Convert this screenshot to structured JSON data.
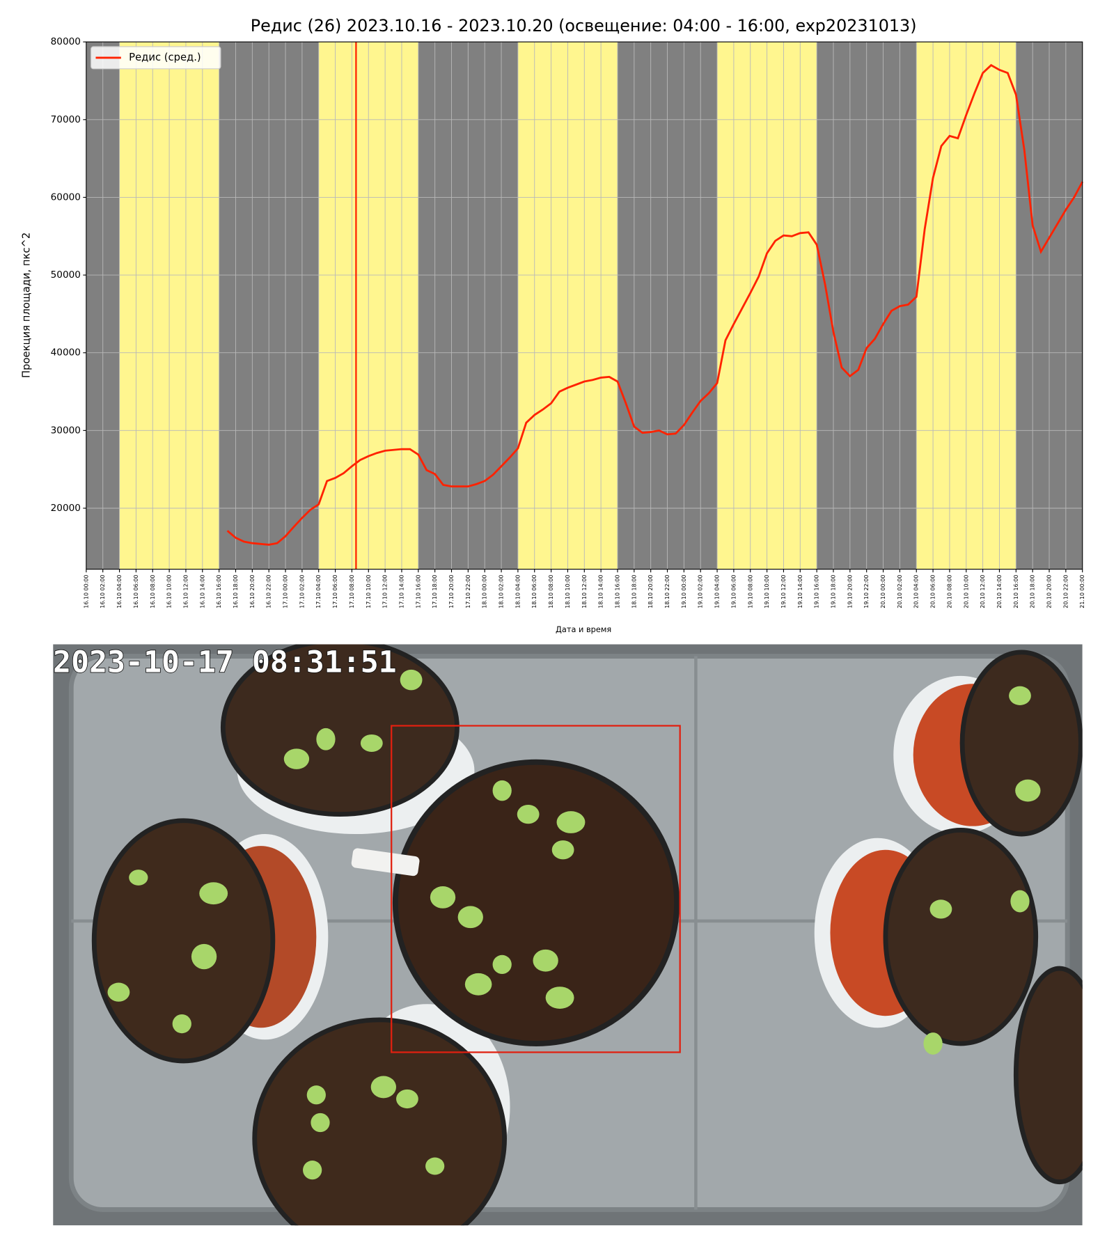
{
  "chart_data": {
    "type": "line",
    "title": "Редис (26) 2023.10.16 - 2023.10.20 (освещение: 04:00 - 16:00, exp20231013)",
    "xlabel": "Дата и время",
    "ylabel": "Проекция площади, пкс^2",
    "legend": "upper left",
    "grid": true,
    "background_color": "#808080",
    "band_color": "#fff68f",
    "light_bands": [
      [
        "16.10 04:00",
        "16.10 16:00"
      ],
      [
        "17.10 04:00",
        "17.10 16:00"
      ],
      [
        "18.10 04:00",
        "18.10 16:00"
      ],
      [
        "19.10 04:00",
        "19.10 16:00"
      ],
      [
        "20.10 04:00",
        "20.10 16:00"
      ]
    ],
    "cursor": "17.10 08:30",
    "cursor_color": "#ff2200",
    "xlim": [
      "16.10 00:00",
      "21.10 00:00"
    ],
    "xticks": [
      "16.10 00:00",
      "16.10 02:00",
      "16.10 04:00",
      "16.10 06:00",
      "16.10 08:00",
      "16.10 10:00",
      "16.10 12:00",
      "16.10 14:00",
      "16.10 16:00",
      "16.10 18:00",
      "16.10 20:00",
      "16.10 22:00",
      "17.10 00:00",
      "17.10 02:00",
      "17.10 04:00",
      "17.10 06:00",
      "17.10 08:00",
      "17.10 10:00",
      "17.10 12:00",
      "17.10 14:00",
      "17.10 16:00",
      "17.10 18:00",
      "17.10 20:00",
      "17.10 22:00",
      "18.10 00:00",
      "18.10 02:00",
      "18.10 04:00",
      "18.10 06:00",
      "18.10 08:00",
      "18.10 10:00",
      "18.10 12:00",
      "18.10 14:00",
      "18.10 16:00",
      "18.10 18:00",
      "18.10 20:00",
      "18.10 22:00",
      "19.10 00:00",
      "19.10 02:00",
      "19.10 04:00",
      "19.10 06:00",
      "19.10 08:00",
      "19.10 10:00",
      "19.10 12:00",
      "19.10 14:00",
      "19.10 16:00",
      "19.10 18:00",
      "19.10 20:00",
      "19.10 22:00",
      "20.10 00:00",
      "20.10 02:00",
      "20.10 04:00",
      "20.10 06:00",
      "20.10 08:00",
      "20.10 10:00",
      "20.10 12:00",
      "20.10 14:00",
      "20.10 16:00",
      "20.10 18:00",
      "20.10 20:00",
      "20.10 22:00",
      "21.10 00:00"
    ],
    "ylim": [
      12150,
      80000
    ],
    "yticks": [
      20000,
      30000,
      40000,
      50000,
      60000,
      70000,
      80000
    ],
    "x": [
      "16.10 17:00",
      "16.10 18:00",
      "16.10 19:00",
      "16.10 20:00",
      "16.10 21:00",
      "16.10 22:00",
      "16.10 23:00",
      "17.10 00:00",
      "17.10 01:00",
      "17.10 02:00",
      "17.10 03:00",
      "17.10 04:00",
      "17.10 05:00",
      "17.10 06:00",
      "17.10 07:00",
      "17.10 08:00",
      "17.10 09:00",
      "17.10 10:00",
      "17.10 11:00",
      "17.10 12:00",
      "17.10 13:00",
      "17.10 14:00",
      "17.10 15:00",
      "17.10 16:00",
      "17.10 17:00",
      "17.10 18:00",
      "17.10 19:00",
      "17.10 20:00",
      "17.10 21:00",
      "17.10 22:00",
      "17.10 23:00",
      "18.10 00:00",
      "18.10 01:00",
      "18.10 02:00",
      "18.10 03:00",
      "18.10 04:00",
      "18.10 05:00",
      "18.10 06:00",
      "18.10 07:00",
      "18.10 08:00",
      "18.10 09:00",
      "18.10 10:00",
      "18.10 11:00",
      "18.10 12:00",
      "18.10 13:00",
      "18.10 14:00",
      "18.10 15:00",
      "18.10 16:00",
      "18.10 17:00",
      "18.10 18:00",
      "18.10 19:00",
      "18.10 20:00",
      "18.10 21:00",
      "18.10 22:00",
      "18.10 23:00",
      "19.10 00:00",
      "19.10 01:00",
      "19.10 02:00",
      "19.10 03:00",
      "19.10 04:00",
      "19.10 05:00",
      "19.10 06:00",
      "19.10 07:00",
      "19.10 08:00",
      "19.10 09:00",
      "19.10 10:00",
      "19.10 11:00",
      "19.10 12:00",
      "19.10 13:00",
      "19.10 14:00",
      "19.10 15:00",
      "19.10 16:00",
      "19.10 17:00",
      "19.10 18:00",
      "19.10 19:00",
      "19.10 20:00",
      "19.10 21:00",
      "19.10 22:00",
      "19.10 23:00",
      "20.10 00:00",
      "20.10 01:00",
      "20.10 02:00",
      "20.10 03:00",
      "20.10 04:00",
      "20.10 05:00",
      "20.10 06:00",
      "20.10 07:00",
      "20.10 08:00",
      "20.10 09:00",
      "20.10 10:00",
      "20.10 11:00",
      "20.10 12:00",
      "20.10 13:00",
      "20.10 14:00",
      "20.10 15:00",
      "20.10 16:00",
      "20.10 17:00",
      "20.10 18:00",
      "20.10 19:00",
      "20.10 20:00",
      "20.10 21:00",
      "20.10 22:00",
      "20.10 23:00",
      "21.10 00:00"
    ],
    "series": [
      {
        "name": "Редис (сред.)",
        "color": "#ff2200",
        "values": [
          17100,
          16200,
          15700,
          15500,
          15400,
          15300,
          15500,
          16400,
          17600,
          18750,
          19800,
          20500,
          23500,
          23900,
          24500,
          25400,
          26200,
          26700,
          27100,
          27400,
          27500,
          27600,
          27600,
          26900,
          24900,
          24400,
          23000,
          22800,
          22800,
          22800,
          23100,
          23500,
          24300,
          25400,
          26500,
          27700,
          31000,
          32000,
          32700,
          33500,
          35000,
          35500,
          35900,
          36300,
          36500,
          36800,
          36900,
          36300,
          33500,
          30500,
          29700,
          29800,
          30000,
          29500,
          29600,
          30700,
          32300,
          33800,
          34800,
          36100,
          41600,
          43700,
          45700,
          47700,
          49800,
          52800,
          54400,
          55100,
          55000,
          55400,
          55500,
          53900,
          48800,
          42700,
          38100,
          37000,
          37800,
          40600,
          41800,
          43700,
          45400,
          46000,
          46200,
          47200,
          55900,
          62500,
          66600,
          67900,
          67600,
          70600,
          73400,
          76000,
          77000,
          76400,
          76000,
          73200,
          66100,
          56400,
          53000,
          54800,
          56600,
          58400,
          60000,
          62000
        ]
      }
    ]
  },
  "photo": {
    "timestamp": "2023-10-17 08:31:51"
  }
}
